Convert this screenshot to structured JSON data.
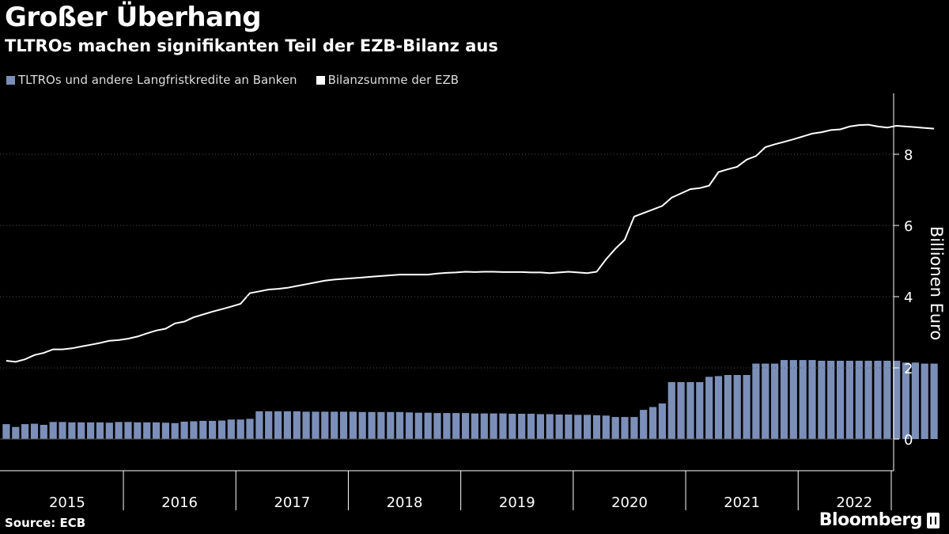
{
  "title": "Großer Überhang",
  "subtitle": "TLTROs machen signifikanten Teil der EZB-Bilanz aus",
  "legend": [
    {
      "label": "TLTROs und andere Langfristkredite an Banken",
      "color": "#7b8fb8"
    },
    {
      "label": "Bilanzsumme der EZB",
      "color": "#ffffff"
    }
  ],
  "source": "Source: ECB",
  "brand": "Bloomberg",
  "chart_data": {
    "type": "bar",
    "ylabel": "Billionen Euro",
    "ylim": [
      -0.9,
      9.5
    ],
    "yticks": [
      0,
      2,
      4,
      6,
      8
    ],
    "year_labels": [
      "2015",
      "2016",
      "2017",
      "2018",
      "2019",
      "2020",
      "2021",
      "2022"
    ],
    "x_start": "2014-12",
    "series": [
      {
        "name": "TLTROs und andere Langfristkredite an Banken",
        "type": "bar",
        "color": "#7b8fb8",
        "values": [
          0.42,
          0.34,
          0.42,
          0.43,
          0.4,
          0.48,
          0.48,
          0.47,
          0.47,
          0.47,
          0.47,
          0.46,
          0.48,
          0.48,
          0.47,
          0.47,
          0.47,
          0.46,
          0.45,
          0.49,
          0.5,
          0.51,
          0.51,
          0.52,
          0.55,
          0.55,
          0.57,
          0.78,
          0.78,
          0.78,
          0.78,
          0.78,
          0.77,
          0.77,
          0.77,
          0.77,
          0.77,
          0.77,
          0.76,
          0.76,
          0.76,
          0.76,
          0.76,
          0.75,
          0.74,
          0.74,
          0.73,
          0.73,
          0.73,
          0.73,
          0.72,
          0.72,
          0.72,
          0.72,
          0.71,
          0.71,
          0.71,
          0.7,
          0.7,
          0.69,
          0.69,
          0.68,
          0.68,
          0.67,
          0.66,
          0.62,
          0.62,
          0.62,
          0.82,
          0.9,
          1.0,
          1.6,
          1.6,
          1.6,
          1.6,
          1.75,
          1.77,
          1.8,
          1.8,
          1.8,
          2.12,
          2.12,
          2.12,
          2.22,
          2.22,
          2.22,
          2.22,
          2.2,
          2.2,
          2.2,
          2.2,
          2.2,
          2.2,
          2.2,
          2.2,
          2.2,
          2.15,
          2.15,
          2.12,
          2.12
        ]
      },
      {
        "name": "Bilanzsumme der EZB",
        "type": "line",
        "color": "#ffffff",
        "values": [
          2.2,
          2.17,
          2.24,
          2.36,
          2.42,
          2.52,
          2.52,
          2.55,
          2.6,
          2.65,
          2.7,
          2.76,
          2.78,
          2.82,
          2.88,
          2.97,
          3.05,
          3.1,
          3.25,
          3.3,
          3.42,
          3.5,
          3.58,
          3.65,
          3.72,
          3.8,
          4.1,
          4.15,
          4.2,
          4.22,
          4.25,
          4.3,
          4.35,
          4.4,
          4.45,
          4.48,
          4.5,
          4.52,
          4.54,
          4.56,
          4.58,
          4.6,
          4.62,
          4.62,
          4.62,
          4.62,
          4.65,
          4.67,
          4.68,
          4.7,
          4.69,
          4.7,
          4.7,
          4.69,
          4.69,
          4.69,
          4.68,
          4.68,
          4.66,
          4.68,
          4.7,
          4.68,
          4.66,
          4.7,
          5.05,
          5.35,
          5.6,
          6.25,
          6.35,
          6.45,
          6.55,
          6.78,
          6.9,
          7.02,
          7.05,
          7.12,
          7.5,
          7.58,
          7.65,
          7.85,
          7.95,
          8.2,
          8.28,
          8.35,
          8.42,
          8.5,
          8.58,
          8.62,
          8.68,
          8.7,
          8.78,
          8.82,
          8.83,
          8.78,
          8.75,
          8.8,
          8.78,
          8.76,
          8.74,
          8.72
        ]
      }
    ]
  }
}
